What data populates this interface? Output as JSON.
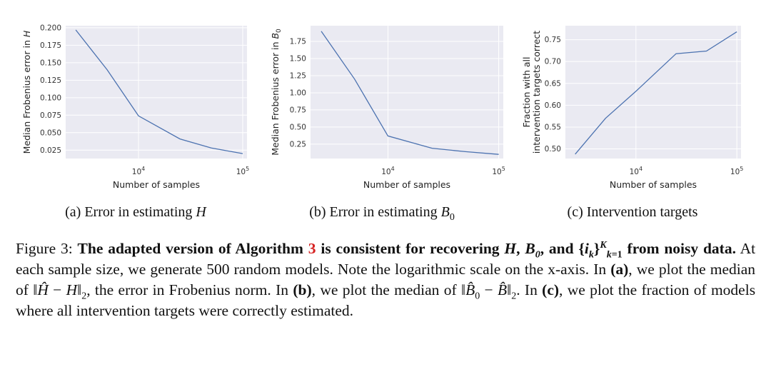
{
  "chart_data": [
    {
      "type": "line",
      "id": "a",
      "x": [
        2500,
        5000,
        10000,
        25000,
        50000,
        100000
      ],
      "y": [
        0.197,
        0.14,
        0.074,
        0.041,
        0.028,
        0.02
      ],
      "xscale": "log",
      "xlim": [
        2000,
        110000
      ],
      "ylim": [
        0.013,
        0.203
      ],
      "yticks": [
        0.025,
        0.05,
        0.075,
        0.1,
        0.125,
        0.15,
        0.175,
        0.2
      ],
      "yticklabels": [
        "0.025",
        "0.050",
        "0.075",
        "0.100",
        "0.125",
        "0.150",
        "0.175",
        "0.200"
      ],
      "xticklabels": [
        {
          "base": "10",
          "exp": "4"
        },
        {
          "base": "10",
          "exp": "5"
        }
      ],
      "xlabel": "Number of samples",
      "ylabel": "Median Frobenius error in H",
      "ylabel_text": "Median Frobenius error in ",
      "ylabel_var": "H",
      "subcaption": {
        "prefix": "(a) Error in estimating ",
        "var": "H"
      },
      "grid": true,
      "background": "#eaeaf2",
      "line_color": "#4c72b0"
    },
    {
      "type": "line",
      "id": "b",
      "x": [
        2500,
        5000,
        10000,
        25000,
        50000,
        100000
      ],
      "y": [
        1.9,
        1.2,
        0.37,
        0.19,
        0.14,
        0.1
      ],
      "xscale": "log",
      "xlim": [
        2000,
        110000
      ],
      "ylim": [
        0.04,
        1.98
      ],
      "yticks": [
        0.25,
        0.5,
        0.75,
        1.0,
        1.25,
        1.5,
        1.75
      ],
      "yticklabels": [
        "0.25",
        "0.50",
        "0.75",
        "1.00",
        "1.25",
        "1.50",
        "1.75"
      ],
      "xticklabels": [
        {
          "base": "10",
          "exp": "4"
        },
        {
          "base": "10",
          "exp": "5"
        }
      ],
      "xlabel": "Number of samples",
      "ylabel": "Median Frobenius error in B0",
      "ylabel_text": "Median Frobenius error in ",
      "ylabel_var": "B",
      "ylabel_sub": "0",
      "subcaption": {
        "prefix": "(b) Error in estimating ",
        "var": "B",
        "sub": "0"
      },
      "grid": true,
      "background": "#eaeaf2",
      "line_color": "#4c72b0"
    },
    {
      "type": "line",
      "id": "c",
      "x": [
        2500,
        5000,
        10000,
        25000,
        50000,
        100000
      ],
      "y": [
        0.488,
        0.57,
        0.632,
        0.718,
        0.724,
        0.768
      ],
      "xscale": "log",
      "xlim": [
        2000,
        110000
      ],
      "ylim": [
        0.478,
        0.782
      ],
      "yticks": [
        0.5,
        0.55,
        0.6,
        0.65,
        0.7,
        0.75
      ],
      "yticklabels": [
        "0.50",
        "0.55",
        "0.60",
        "0.65",
        "0.70",
        "0.75"
      ],
      "xticklabels": [
        {
          "base": "10",
          "exp": "4"
        },
        {
          "base": "10",
          "exp": "5"
        }
      ],
      "xlabel": "Number of samples",
      "ylabel": "Fraction with all intervention targets correct",
      "ylabel_lines": [
        "Fraction with all",
        "intervention targets correct"
      ],
      "subcaption": {
        "prefix": "(c) Intervention targets"
      },
      "grid": true,
      "background": "#eaeaf2",
      "line_color": "#4c72b0"
    }
  ],
  "caption": {
    "figure_label": "Figure 3:",
    "bold_a": "The adapted version of Algorithm",
    "algo_ref": "3",
    "bold_b": "is consistent for recovering",
    "bold_vars": "H, B0, and {ik}k=1..K",
    "bold_c": "from noisy data.",
    "sentence1": "At each sample size, we generate 500 random models. Note the logarithmic scale on the x-axis.",
    "in_a": "In",
    "label_a": "(a)",
    "plot_a": ", we plot the median of",
    "plot_a_tail": ", the error in Frobenius norm.",
    "label_b": "(b)",
    "plot_b": "we plot the median of",
    "label_c": "(c)",
    "plot_c": ", we plot the fraction of models where all intervention targets were correctly estimated."
  }
}
